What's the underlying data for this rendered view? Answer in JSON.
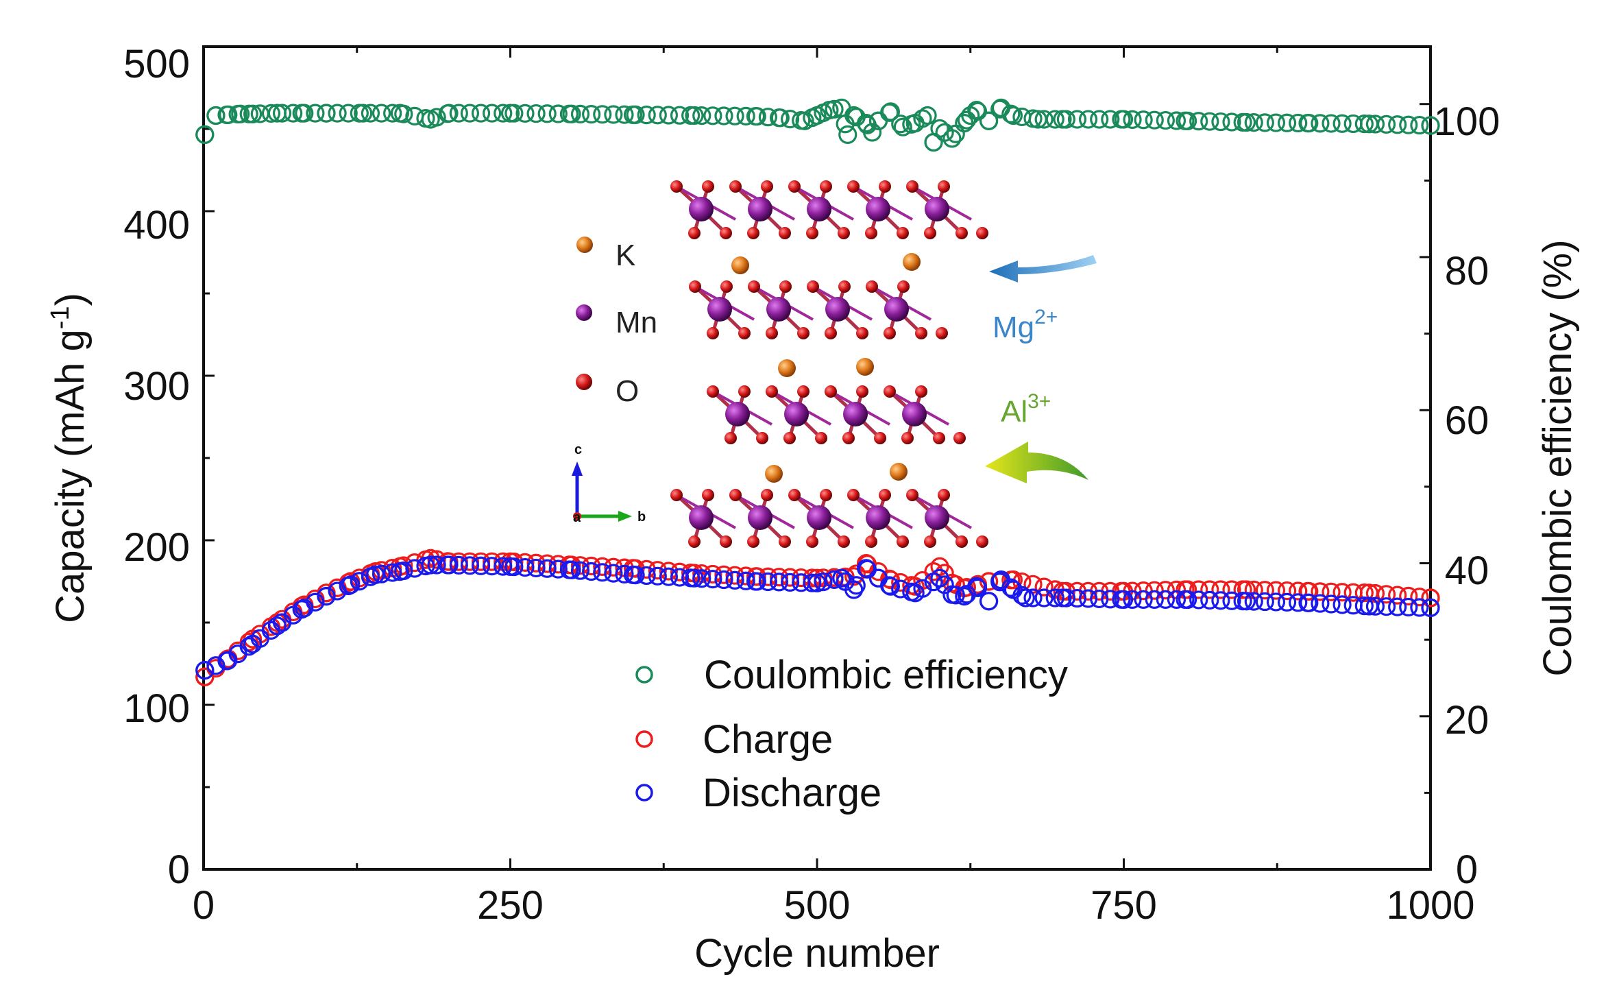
{
  "chart_data": {
    "type": "scatter",
    "xlabel": "Cycle number",
    "ylabel": "Capacity (mAh g",
    "ylabel_superscript": "-1",
    "ylabel_close": ")",
    "y2label": "Coulombic efficiency (%)",
    "xlim": [
      0,
      1000
    ],
    "ylim": [
      0,
      500
    ],
    "y2lim": [
      0,
      107.5
    ],
    "xticks": [
      "0",
      "250",
      "500",
      "750",
      "1000"
    ],
    "yticks": [
      "0",
      "100",
      "200",
      "300",
      "400",
      "500"
    ],
    "y2ticks": [
      "0",
      "20",
      "40",
      "60",
      "80",
      "100"
    ],
    "legend": [
      "Coulombic efficiency",
      "Charge",
      "Discharge"
    ],
    "colors": {
      "ce": "#1a8a5a",
      "charge": "#ee1c1c",
      "discharge": "#1a1aee"
    },
    "series": [
      {
        "name": "Coulombic efficiency",
        "axis": "right",
        "x": [
          1,
          10,
          20,
          30,
          40,
          60,
          80,
          100,
          130,
          160,
          185,
          200,
          250,
          300,
          350,
          400,
          450,
          470,
          490,
          500,
          510,
          520,
          525,
          530,
          540,
          545,
          550,
          560,
          570,
          580,
          590,
          595,
          600,
          610,
          620,
          625,
          630,
          640,
          650,
          660,
          680,
          700,
          750,
          800,
          850,
          900,
          950,
          1000
        ],
        "values": [
          96,
          98.5,
          98.6,
          98.7,
          98.7,
          98.8,
          98.8,
          98.8,
          98.8,
          98.8,
          98,
          98.8,
          98.8,
          98.7,
          98.6,
          98.5,
          98.4,
          98.2,
          97.8,
          98.5,
          99.2,
          99.5,
          96,
          98.5,
          97.5,
          96.3,
          97.8,
          99,
          97,
          97.5,
          98.5,
          95,
          96.8,
          95.5,
          97.5,
          98.5,
          99.2,
          97.8,
          99.5,
          98.5,
          98,
          98,
          98,
          97.8,
          97.6,
          97.5,
          97.4,
          97.2
        ]
      },
      {
        "name": "Charge",
        "axis": "left",
        "x": [
          1,
          20,
          40,
          60,
          80,
          100,
          120,
          140,
          160,
          185,
          200,
          250,
          300,
          350,
          400,
          450,
          500,
          530,
          540,
          560,
          580,
          600,
          610,
          620,
          640,
          660,
          700,
          750,
          800,
          850,
          900,
          950,
          1000
        ],
        "values": [
          117,
          128,
          140,
          150,
          160,
          168,
          175,
          181,
          184,
          189,
          187,
          187,
          185,
          183,
          180,
          178,
          177,
          178,
          186,
          176,
          172,
          184,
          174,
          171,
          175,
          176,
          169,
          169,
          170,
          170,
          169,
          168,
          165
        ]
      },
      {
        "name": "Discharge",
        "axis": "left",
        "x": [
          1,
          20,
          40,
          60,
          80,
          100,
          120,
          140,
          160,
          185,
          200,
          250,
          300,
          350,
          400,
          450,
          500,
          520,
          530,
          540,
          550,
          560,
          580,
          600,
          610,
          620,
          630,
          640,
          650,
          660,
          670,
          700,
          750,
          800,
          850,
          900,
          950,
          1000
        ],
        "values": [
          121,
          127,
          137,
          148,
          158,
          166,
          173,
          179,
          181,
          185,
          185,
          184,
          182,
          179,
          177,
          175,
          174,
          177,
          170,
          183,
          177,
          172,
          168,
          177,
          167,
          166,
          172,
          163,
          176,
          170,
          165,
          165,
          164,
          164,
          163,
          162,
          160,
          159
        ]
      }
    ]
  },
  "inset": {
    "legend": [
      {
        "label": "K",
        "color": "#e07a1c"
      },
      {
        "label": "Mn",
        "color": "#8a1f9a"
      },
      {
        "label": "O",
        "color": "#d71a1a"
      }
    ],
    "ions": [
      {
        "symbol": "Mg",
        "charge": "2+",
        "color": "#3a86c8"
      },
      {
        "symbol": "Al",
        "charge": "3+",
        "color": "#66a62e"
      }
    ],
    "crystal_axes": [
      "c",
      "a",
      "b"
    ]
  }
}
